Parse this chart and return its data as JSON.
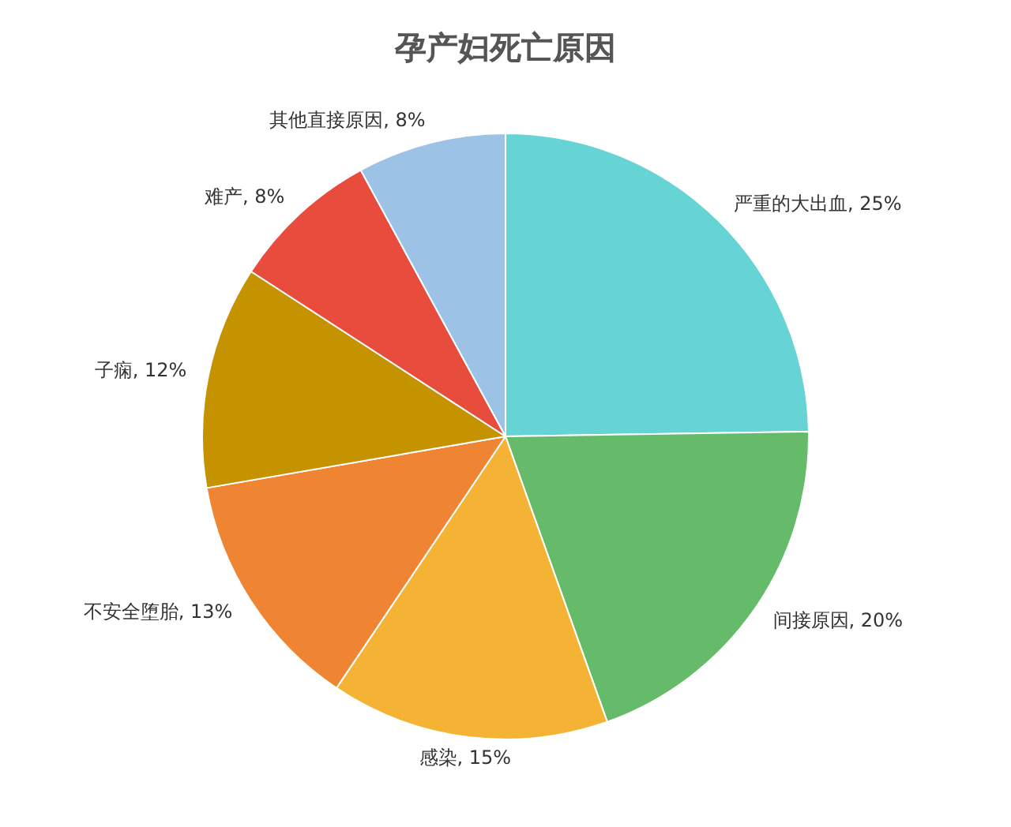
{
  "chart_data": {
    "type": "pie",
    "title": "孕产妇死亡原因",
    "categories": [
      "严重的大出血",
      "间接原因",
      "感染",
      "不安全堕胎",
      "子痫",
      "难产",
      "其他直接原因"
    ],
    "values": [
      25,
      20,
      15,
      13,
      12,
      8,
      8
    ],
    "colors": [
      "#66d4d4",
      "#66bb6a",
      "#f5b335",
      "#ef8432",
      "#c59200",
      "#e84c3d",
      "#9cc3e6"
    ],
    "value_labels": [
      ", 25%",
      ", 20%",
      ", 15%",
      ", 13%",
      ", 12%",
      ", 8%",
      ", 8%"
    ],
    "legend": false
  }
}
